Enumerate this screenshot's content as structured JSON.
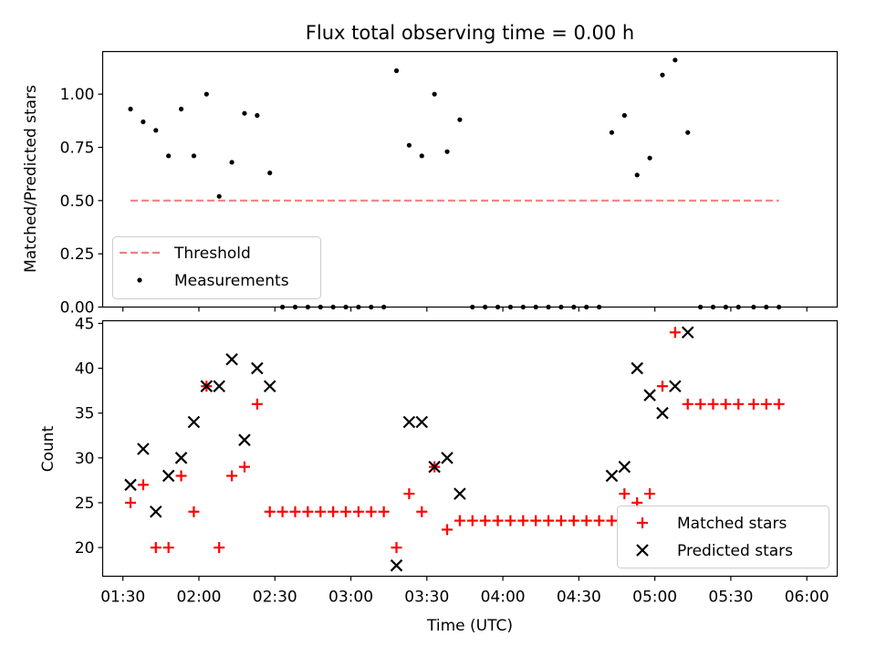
{
  "chart_data": [
    {
      "type": "scatter",
      "title": "Flux total observing time = 0.00 h",
      "xlabel": "",
      "ylabel": "Matched/Predicted stars",
      "xlim": [
        82,
        372
      ],
      "ylim": [
        0.0,
        1.2
      ],
      "yticks": [
        0.0,
        0.25,
        0.5,
        0.75,
        1.0
      ],
      "ytick_labels": [
        "0.00",
        "0.25",
        "0.50",
        "0.75",
        "1.00"
      ],
      "xticks": [
        90,
        120,
        150,
        180,
        210,
        240,
        270,
        300,
        330,
        360
      ],
      "legend": {
        "placement": "lower-left",
        "entries": [
          "Threshold",
          "Measurements"
        ]
      },
      "series": [
        {
          "name": "Threshold",
          "style": "dashed-line",
          "color": "#f08080",
          "x": [
            93,
            349
          ],
          "y": [
            0.5,
            0.5
          ]
        },
        {
          "name": "Measurements",
          "style": "dot",
          "color": "#000000",
          "x": [
            93,
            98,
            103,
            108,
            113,
            118,
            123,
            128,
            133,
            138,
            143,
            148,
            153,
            158,
            163,
            168,
            173,
            178,
            183,
            188,
            193,
            198,
            203,
            208,
            213,
            218,
            223,
            228,
            233,
            238,
            243,
            248,
            253,
            258,
            263,
            268,
            273,
            278,
            283,
            288,
            293,
            298,
            303,
            308,
            313,
            318,
            323,
            328,
            333,
            339,
            344,
            349
          ],
          "y": [
            0.93,
            0.87,
            0.83,
            0.71,
            0.93,
            0.71,
            1.0,
            0.52,
            0.68,
            0.91,
            0.9,
            0.63,
            0.0,
            0.0,
            0.0,
            0.0,
            0.0,
            0.0,
            0.0,
            0.0,
            0.0,
            1.11,
            0.76,
            0.71,
            1.0,
            0.73,
            0.88,
            0.0,
            0.0,
            0.0,
            0.0,
            0.0,
            0.0,
            0.0,
            0.0,
            0.0,
            0.0,
            0.0,
            0.82,
            0.9,
            0.62,
            0.7,
            1.09,
            1.16,
            0.82,
            0.0,
            0.0,
            0.0,
            0.0,
            0.0,
            0.0,
            0.0
          ]
        }
      ]
    },
    {
      "type": "scatter",
      "title": "",
      "xlabel": "Time (UTC)",
      "ylabel": "Count",
      "xlim": [
        82,
        372
      ],
      "ylim": [
        16.8,
        45.3
      ],
      "yticks": [
        20,
        25,
        30,
        35,
        40,
        45
      ],
      "ytick_labels": [
        "20",
        "25",
        "30",
        "35",
        "40",
        "45"
      ],
      "xticks": [
        90,
        120,
        150,
        180,
        210,
        240,
        270,
        300,
        330,
        360
      ],
      "xtick_labels": [
        "01:30",
        "02:00",
        "02:30",
        "03:00",
        "03:30",
        "04:00",
        "04:30",
        "05:00",
        "05:30",
        "06:00"
      ],
      "legend": {
        "placement": "lower-right",
        "entries": [
          "Matched stars",
          "Predicted stars"
        ]
      },
      "series": [
        {
          "name": "Matched stars",
          "marker": "plus",
          "color": "#ff0000",
          "x": [
            93,
            98,
            103,
            108,
            113,
            118,
            123,
            128,
            133,
            138,
            143,
            148,
            153,
            158,
            163,
            168,
            173,
            178,
            183,
            188,
            193,
            198,
            203,
            208,
            213,
            218,
            223,
            228,
            233,
            238,
            243,
            248,
            253,
            258,
            263,
            268,
            273,
            278,
            283,
            288,
            293,
            298,
            303,
            308,
            313,
            318,
            323,
            328,
            333,
            339,
            344,
            349
          ],
          "y": [
            25,
            27,
            20,
            20,
            28,
            24,
            38,
            20,
            28,
            29,
            36,
            24,
            24,
            24,
            24,
            24,
            24,
            24,
            24,
            24,
            24,
            20,
            26,
            24,
            29,
            22,
            23,
            23,
            23,
            23,
            23,
            23,
            23,
            23,
            23,
            23,
            23,
            23,
            23,
            26,
            25,
            26,
            38,
            44,
            36,
            36,
            36,
            36,
            36,
            36,
            36,
            36
          ]
        },
        {
          "name": "Predicted stars",
          "marker": "x",
          "color": "#000000",
          "x": [
            93,
            98,
            103,
            108,
            113,
            118,
            123,
            128,
            133,
            138,
            143,
            148,
            198,
            203,
            208,
            213,
            218,
            223,
            283,
            288,
            293,
            298,
            303,
            308,
            313
          ],
          "y": [
            27,
            31,
            24,
            28,
            30,
            34,
            38,
            38,
            41,
            32,
            40,
            38,
            18,
            34,
            34,
            29,
            30,
            26,
            28,
            29,
            40,
            37,
            35,
            38,
            44
          ]
        }
      ]
    }
  ]
}
